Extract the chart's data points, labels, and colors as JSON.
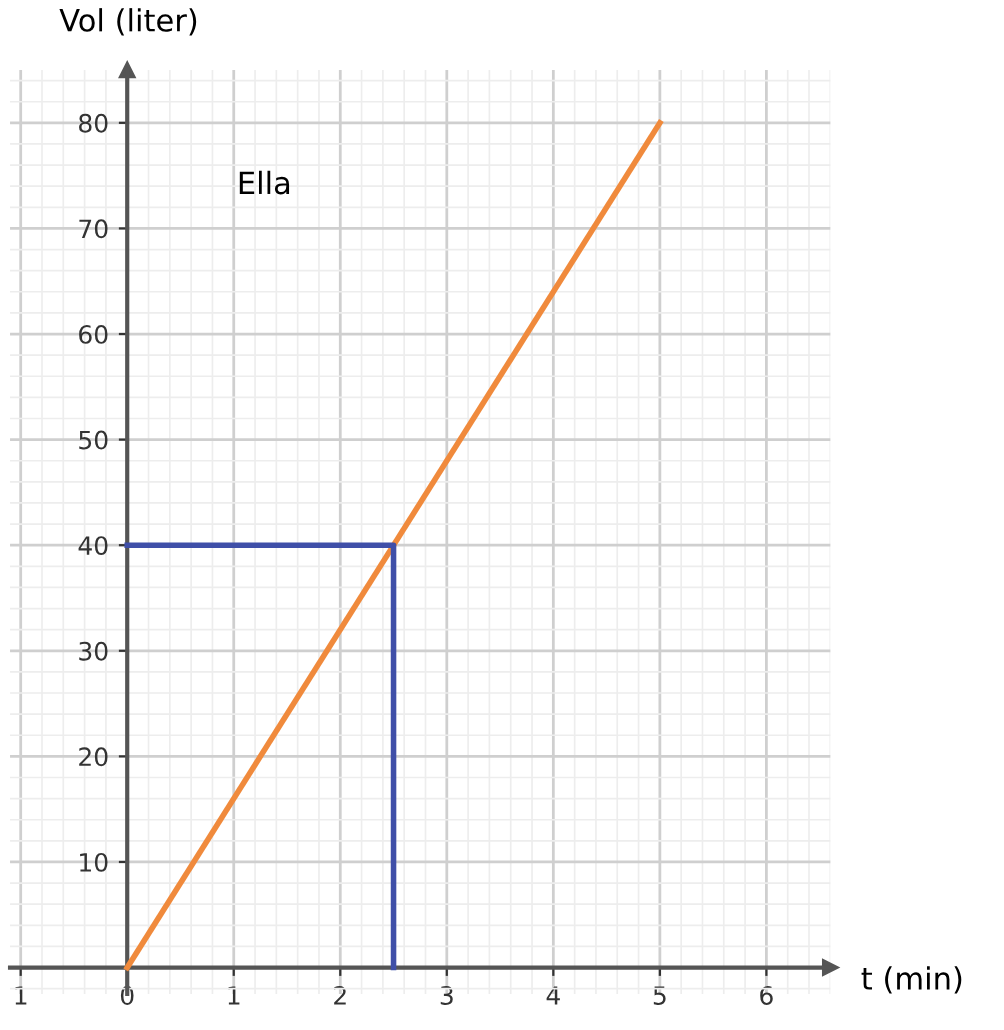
{
  "chart_data": {
    "type": "line",
    "xlabel": "t (min)",
    "ylabel": "Vol (liter)",
    "series": [
      {
        "x": [
          0,
          5
        ],
        "values": [
          0,
          80
        ],
        "color": "#f08a3c"
      },
      {
        "x": [
          0,
          2.5,
          2.5
        ],
        "values": [
          40,
          40,
          0
        ],
        "color": "#3f4fa8"
      }
    ],
    "annotations": [
      "Ella"
    ],
    "xlim": [
      -1.1,
      6.6
    ],
    "ylim": [
      -2.5,
      85
    ],
    "xticks": [
      {
        "value": -1,
        "label": "1"
      },
      0,
      1,
      2,
      3,
      4,
      5,
      6
    ],
    "yticks": [
      10,
      20,
      30,
      40,
      50,
      60,
      70,
      80
    ],
    "grid": true,
    "marker": "none",
    "line_style": "solid"
  }
}
